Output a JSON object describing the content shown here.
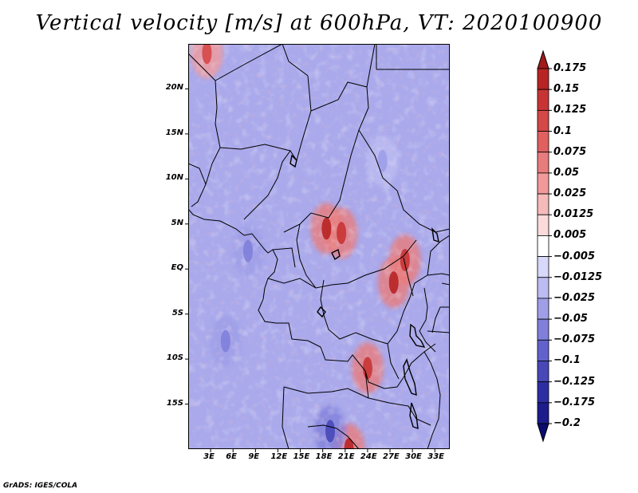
{
  "chart_data": {
    "type": "heatmap",
    "title": "Vertical velocity [m/s] at 600hPa, VT: 2020100900",
    "variable": "Vertical velocity",
    "units": "m/s",
    "level": "600hPa",
    "valid_time": "2020100900",
    "x_range": [
      0,
      35
    ],
    "y_range": [
      -20,
      25
    ],
    "x_ticks": [
      {
        "value": 3,
        "label": "3E"
      },
      {
        "value": 6,
        "label": "6E"
      },
      {
        "value": 9,
        "label": "9E"
      },
      {
        "value": 12,
        "label": "12E"
      },
      {
        "value": 15,
        "label": "15E"
      },
      {
        "value": 18,
        "label": "18E"
      },
      {
        "value": 21,
        "label": "21E"
      },
      {
        "value": 24,
        "label": "24E"
      },
      {
        "value": 27,
        "label": "27E"
      },
      {
        "value": 30,
        "label": "30E"
      },
      {
        "value": 33,
        "label": "33E"
      }
    ],
    "y_ticks": [
      {
        "value": 20,
        "label": "20N"
      },
      {
        "value": 15,
        "label": "15N"
      },
      {
        "value": 10,
        "label": "10N"
      },
      {
        "value": 5,
        "label": "5N"
      },
      {
        "value": 0,
        "label": "EQ"
      },
      {
        "value": -5,
        "label": "5S"
      },
      {
        "value": -10,
        "label": "10S"
      },
      {
        "value": -15,
        "label": "15S"
      }
    ],
    "colorbar": {
      "levels": [
        "0.175",
        "0.15",
        "0.125",
        "0.1",
        "0.075",
        "0.05",
        "0.025",
        "0.0125",
        "0.005",
        "−0.005",
        "−0.0125",
        "−0.025",
        "−0.05",
        "−0.075",
        "−0.1",
        "−0.125",
        "−0.175",
        "−0.2"
      ],
      "colors": [
        "#a01a1a",
        "#b72424",
        "#c83434",
        "#d54848",
        "#e06060",
        "#e87c7c",
        "#f19a9a",
        "#f7baba",
        "#fbdada",
        "#ffffff",
        "#d8d8fa",
        "#bcbcf2",
        "#9f9fe8",
        "#8080dc",
        "#6262cc",
        "#4848b8",
        "#2e2ea4",
        "#1c1c8c",
        "#0c0c6e"
      ]
    },
    "features": {
      "positive_centers": [
        {
          "lon": 18.5,
          "lat": 4.5,
          "value": 0.15
        },
        {
          "lon": 20.5,
          "lat": 4.0,
          "value": 0.125
        },
        {
          "lon": 27.5,
          "lat": -1.5,
          "value": 0.15
        },
        {
          "lon": 29.0,
          "lat": 1.0,
          "value": 0.125
        },
        {
          "lon": 24.0,
          "lat": -11.0,
          "value": 0.125
        },
        {
          "lon": 21.5,
          "lat": -20.0,
          "value": 0.15
        },
        {
          "lon": 2.5,
          "lat": 24.0,
          "value": 0.1
        }
      ],
      "negative_centers": [
        {
          "lon": 8.0,
          "lat": 2.0,
          "value": -0.075
        },
        {
          "lon": 19.0,
          "lat": -18.0,
          "value": -0.125
        },
        {
          "lon": 5.0,
          "lat": -8.0,
          "value": -0.075
        },
        {
          "lon": 26.0,
          "lat": 12.0,
          "value": -0.05
        }
      ]
    }
  },
  "footer": "GrADS: IGES/COLA"
}
